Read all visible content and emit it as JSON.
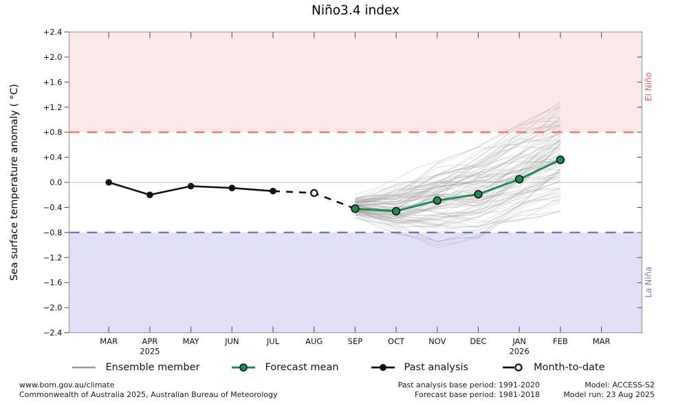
{
  "title": "Niño3.4 index",
  "ylabel": "Sea surface temperature anomaly ( °C)",
  "bands": {
    "el_nino_label": "El Niño",
    "la_nina_label": "La Niña"
  },
  "legend": [
    {
      "key": "ensemble",
      "label": "Ensemble member"
    },
    {
      "key": "forecast",
      "label": "Forecast mean"
    },
    {
      "key": "past",
      "label": "Past analysis"
    },
    {
      "key": "mtd",
      "label": "Month-to-date"
    }
  ],
  "footer": {
    "left_line1": "www.bom.gov.au/climate",
    "left_line2": "Commonwealth of Australia 2025, Australian Bureau of Meteorology",
    "mid_line1": "Past analysis base period: 1991-2020",
    "mid_line2": "Forecast base period: 1981-2018",
    "right_line1": "Model: ACCESS-S2",
    "right_line2": "Model run: 23 Aug 2025"
  },
  "colors": {
    "el_nino_band": "#fbe9e9",
    "la_nina_band": "#e0e0f8",
    "el_nino_line": "#f97070",
    "la_nina_line": "#7373b9",
    "el_nino_text": "#dd5c5c",
    "la_nina_text": "#7878bb",
    "forecast_green": "#1f8c52",
    "past_black": "#111111",
    "ensemble_gray": "#999999",
    "zero_line": "#c9c9c9",
    "border": "#9a9a9a",
    "tick": "#555555",
    "label_text": "#111111"
  },
  "chart_data": {
    "type": "line",
    "title": "Niño3.4 index",
    "ylabel": "Sea surface temperature anomaly ( °C)",
    "ylim": [
      -2.4,
      2.4
    ],
    "ytick_step": 0.4,
    "grid": "zero-line-only",
    "legend_position": "bottom",
    "x_categories": [
      "MAR",
      "APR",
      "MAY",
      "JUN",
      "JUL",
      "AUG",
      "SEP",
      "OCT",
      "NOV",
      "DEC",
      "JAN",
      "FEB",
      "MAR"
    ],
    "x_year_labels": [
      {
        "index": 1,
        "label": "2025"
      },
      {
        "index": 10,
        "label": "2026"
      }
    ],
    "thresholds": {
      "el_nino": 0.8,
      "la_nina": -0.8
    },
    "series": [
      {
        "key": "past",
        "name": "Past analysis",
        "style": "solid-black-filled-markers",
        "x_indices": [
          0,
          1,
          2,
          3,
          4
        ],
        "values": [
          0.0,
          -0.2,
          -0.06,
          -0.09,
          -0.14
        ]
      },
      {
        "key": "mtd",
        "name": "Month-to-date",
        "style": "dashed-black-open-marker",
        "x_indices": [
          5
        ],
        "values": [
          -0.17
        ]
      },
      {
        "key": "forecast",
        "name": "Forecast mean",
        "style": "solid-green-filled-markers",
        "x_indices": [
          6,
          7,
          8,
          9,
          10,
          11
        ],
        "values": [
          -0.42,
          -0.46,
          -0.29,
          -0.19,
          0.05,
          0.36
        ]
      },
      {
        "key": "ensemble",
        "name": "Ensemble member",
        "style": "thin-gray-fan",
        "x_indices": [
          6,
          7,
          8,
          9,
          10,
          11
        ],
        "count": 95,
        "envelope_low": [
          -0.62,
          -0.92,
          -1.02,
          -0.88,
          -0.6,
          -0.48
        ],
        "envelope_high": [
          -0.14,
          0.08,
          0.32,
          0.58,
          0.92,
          1.28
        ]
      }
    ]
  }
}
